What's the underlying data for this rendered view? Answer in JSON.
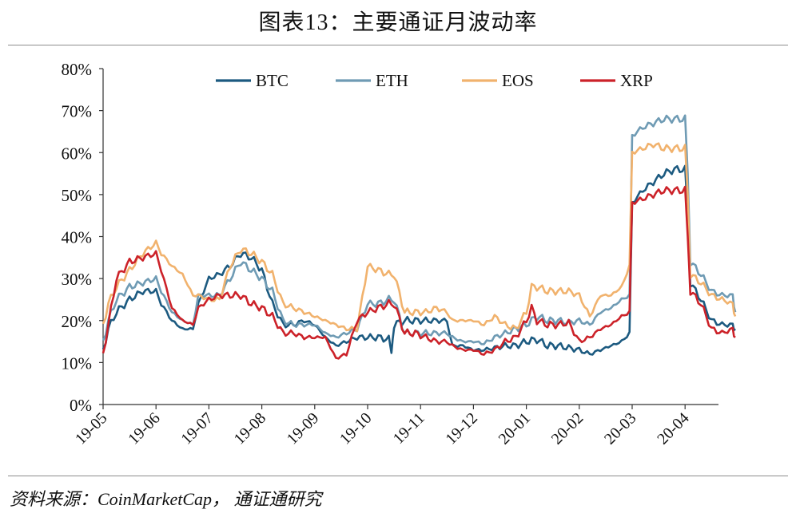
{
  "title": "图表13：主要通证月波动率",
  "source": "资料来源：CoinMarketCap， 通证通研究",
  "colors": {
    "BTC": "#1c5a80",
    "ETH": "#6f9bb4",
    "EOS": "#f1b26d",
    "XRP": "#cc2229",
    "axis": "#333333"
  },
  "chart_data": {
    "type": "line",
    "x_ticks": [
      "19-05",
      "19-06",
      "19-07",
      "19-08",
      "19-09",
      "19-10",
      "19-11",
      "19-12",
      "20-01",
      "20-02",
      "20-03",
      "20-04"
    ],
    "y_ticks": [
      "0%",
      "10%",
      "20%",
      "30%",
      "40%",
      "50%",
      "60%",
      "70%",
      "80%"
    ],
    "ylim": [
      0,
      80
    ],
    "xlim_months": [
      0,
      11.95
    ],
    "legend_position": "top",
    "series": [
      {
        "name": "BTC",
        "points": [
          [
            0,
            13
          ],
          [
            0.1,
            18
          ],
          [
            0.25,
            22
          ],
          [
            0.5,
            25
          ],
          [
            0.75,
            27
          ],
          [
            1.0,
            27
          ],
          [
            1.1,
            24
          ],
          [
            1.3,
            20
          ],
          [
            1.5,
            18
          ],
          [
            1.7,
            18
          ],
          [
            1.8,
            24
          ],
          [
            2.0,
            30
          ],
          [
            2.2,
            31
          ],
          [
            2.4,
            33
          ],
          [
            2.6,
            36
          ],
          [
            2.8,
            35
          ],
          [
            3.0,
            32
          ],
          [
            3.2,
            24
          ],
          [
            3.4,
            19
          ],
          [
            3.6,
            19
          ],
          [
            3.8,
            20
          ],
          [
            4.0,
            19
          ],
          [
            4.2,
            16
          ],
          [
            4.4,
            14
          ],
          [
            4.6,
            15
          ],
          [
            4.8,
            16
          ],
          [
            5.0,
            16
          ],
          [
            5.2,
            16
          ],
          [
            5.4,
            15.5
          ],
          [
            5.45,
            12.5
          ],
          [
            5.5,
            19
          ],
          [
            5.7,
            20
          ],
          [
            5.9,
            20
          ],
          [
            6.1,
            20
          ],
          [
            6.3,
            20
          ],
          [
            6.5,
            20
          ],
          [
            6.6,
            14
          ],
          [
            6.8,
            14
          ],
          [
            7.0,
            13
          ],
          [
            7.2,
            13
          ],
          [
            7.4,
            13.5
          ],
          [
            7.6,
            14
          ],
          [
            7.8,
            14
          ],
          [
            8.0,
            15
          ],
          [
            8.2,
            15.5
          ],
          [
            8.4,
            14
          ],
          [
            8.6,
            14
          ],
          [
            8.8,
            13.5
          ],
          [
            9.0,
            13
          ],
          [
            9.2,
            12
          ],
          [
            9.4,
            13
          ],
          [
            9.6,
            14
          ],
          [
            9.8,
            15
          ],
          [
            9.95,
            17
          ],
          [
            10.0,
            48
          ],
          [
            10.2,
            51
          ],
          [
            10.4,
            53
          ],
          [
            10.6,
            55
          ],
          [
            10.8,
            56
          ],
          [
            11.0,
            56
          ],
          [
            11.05,
            45
          ],
          [
            11.1,
            29
          ],
          [
            11.3,
            25
          ],
          [
            11.5,
            20
          ],
          [
            11.7,
            19
          ],
          [
            11.9,
            19
          ],
          [
            11.95,
            18
          ]
        ]
      },
      {
        "name": "ETH",
        "points": [
          [
            0,
            15
          ],
          [
            0.1,
            20
          ],
          [
            0.25,
            25
          ],
          [
            0.5,
            28
          ],
          [
            0.75,
            29
          ],
          [
            1.0,
            30
          ],
          [
            1.1,
            27
          ],
          [
            1.3,
            22
          ],
          [
            1.5,
            20
          ],
          [
            1.7,
            19
          ],
          [
            1.8,
            26
          ],
          [
            2.0,
            26
          ],
          [
            2.2,
            26
          ],
          [
            2.4,
            30
          ],
          [
            2.6,
            34
          ],
          [
            2.8,
            32
          ],
          [
            3.0,
            30
          ],
          [
            3.2,
            27
          ],
          [
            3.4,
            20
          ],
          [
            3.6,
            19
          ],
          [
            3.8,
            19
          ],
          [
            4.0,
            19
          ],
          [
            4.2,
            17
          ],
          [
            4.4,
            16
          ],
          [
            4.6,
            17
          ],
          [
            4.8,
            18
          ],
          [
            5.0,
            24
          ],
          [
            5.2,
            24
          ],
          [
            5.4,
            25
          ],
          [
            5.5,
            25
          ],
          [
            5.7,
            17
          ],
          [
            5.9,
            17
          ],
          [
            6.1,
            17
          ],
          [
            6.3,
            17
          ],
          [
            6.5,
            17
          ],
          [
            6.6,
            16
          ],
          [
            6.8,
            15
          ],
          [
            7.0,
            15
          ],
          [
            7.2,
            14.5
          ],
          [
            7.4,
            16
          ],
          [
            7.6,
            17
          ],
          [
            7.8,
            18
          ],
          [
            8.0,
            19
          ],
          [
            8.2,
            21
          ],
          [
            8.4,
            20
          ],
          [
            8.6,
            20
          ],
          [
            8.8,
            19.5
          ],
          [
            9.0,
            20
          ],
          [
            9.2,
            19
          ],
          [
            9.4,
            22
          ],
          [
            9.6,
            23
          ],
          [
            9.8,
            25
          ],
          [
            9.95,
            26
          ],
          [
            10.0,
            64
          ],
          [
            10.2,
            66
          ],
          [
            10.4,
            67
          ],
          [
            10.6,
            68
          ],
          [
            10.8,
            68
          ],
          [
            11.0,
            68
          ],
          [
            11.05,
            55
          ],
          [
            11.1,
            34
          ],
          [
            11.3,
            31
          ],
          [
            11.5,
            27
          ],
          [
            11.7,
            26
          ],
          [
            11.9,
            26
          ],
          [
            11.95,
            22
          ]
        ]
      },
      {
        "name": "EOS",
        "points": [
          [
            0,
            19
          ],
          [
            0.1,
            24
          ],
          [
            0.25,
            28
          ],
          [
            0.5,
            32
          ],
          [
            0.75,
            36
          ],
          [
            1.0,
            38.5
          ],
          [
            1.1,
            36
          ],
          [
            1.3,
            33
          ],
          [
            1.5,
            31
          ],
          [
            1.7,
            26
          ],
          [
            1.8,
            26
          ],
          [
            2.0,
            25
          ],
          [
            2.2,
            25
          ],
          [
            2.4,
            33
          ],
          [
            2.6,
            37
          ],
          [
            2.8,
            36
          ],
          [
            3.0,
            34
          ],
          [
            3.2,
            31
          ],
          [
            3.4,
            24
          ],
          [
            3.6,
            23
          ],
          [
            3.8,
            22
          ],
          [
            4.0,
            21
          ],
          [
            4.2,
            20
          ],
          [
            4.4,
            19
          ],
          [
            4.6,
            18
          ],
          [
            4.8,
            18
          ],
          [
            5.0,
            33
          ],
          [
            5.2,
            32
          ],
          [
            5.4,
            31
          ],
          [
            5.5,
            31
          ],
          [
            5.7,
            22
          ],
          [
            5.9,
            22
          ],
          [
            6.1,
            22
          ],
          [
            6.3,
            23
          ],
          [
            6.5,
            22
          ],
          [
            6.6,
            20
          ],
          [
            6.8,
            20
          ],
          [
            7.0,
            20
          ],
          [
            7.2,
            19
          ],
          [
            7.4,
            21
          ],
          [
            7.6,
            19
          ],
          [
            7.8,
            18
          ],
          [
            8.0,
            22
          ],
          [
            8.1,
            28
          ],
          [
            8.2,
            28
          ],
          [
            8.4,
            27
          ],
          [
            8.6,
            27
          ],
          [
            8.8,
            27
          ],
          [
            9.0,
            26
          ],
          [
            9.2,
            21
          ],
          [
            9.4,
            26
          ],
          [
            9.6,
            26
          ],
          [
            9.8,
            28
          ],
          [
            9.95,
            33
          ],
          [
            10.0,
            60
          ],
          [
            10.2,
            61
          ],
          [
            10.4,
            62
          ],
          [
            10.6,
            61
          ],
          [
            10.8,
            61
          ],
          [
            11.0,
            61
          ],
          [
            11.05,
            50
          ],
          [
            11.1,
            31
          ],
          [
            11.3,
            29
          ],
          [
            11.5,
            26
          ],
          [
            11.7,
            25
          ],
          [
            11.9,
            24
          ],
          [
            11.95,
            21
          ]
        ]
      },
      {
        "name": "XRP",
        "points": [
          [
            0,
            12
          ],
          [
            0.1,
            19
          ],
          [
            0.25,
            30
          ],
          [
            0.5,
            34
          ],
          [
            0.75,
            35
          ],
          [
            1.0,
            36
          ],
          [
            1.1,
            32
          ],
          [
            1.3,
            23
          ],
          [
            1.5,
            20
          ],
          [
            1.7,
            19
          ],
          [
            1.8,
            23
          ],
          [
            2.0,
            25
          ],
          [
            2.2,
            26
          ],
          [
            2.4,
            26
          ],
          [
            2.6,
            26
          ],
          [
            2.8,
            24
          ],
          [
            3.0,
            23
          ],
          [
            3.2,
            21
          ],
          [
            3.4,
            17
          ],
          [
            3.6,
            17
          ],
          [
            3.8,
            16
          ],
          [
            4.0,
            16
          ],
          [
            4.2,
            16
          ],
          [
            4.4,
            11
          ],
          [
            4.6,
            12
          ],
          [
            4.8,
            20
          ],
          [
            5.0,
            22
          ],
          [
            5.2,
            23
          ],
          [
            5.4,
            24
          ],
          [
            5.5,
            24
          ],
          [
            5.7,
            17
          ],
          [
            5.9,
            17
          ],
          [
            6.1,
            16
          ],
          [
            6.3,
            15
          ],
          [
            6.5,
            15
          ],
          [
            6.6,
            14
          ],
          [
            6.8,
            13
          ],
          [
            7.0,
            13
          ],
          [
            7.2,
            12
          ],
          [
            7.4,
            13
          ],
          [
            7.6,
            15
          ],
          [
            7.8,
            16
          ],
          [
            8.0,
            20
          ],
          [
            8.1,
            23
          ],
          [
            8.2,
            20
          ],
          [
            8.4,
            19
          ],
          [
            8.6,
            19
          ],
          [
            8.8,
            19.5
          ],
          [
            9.0,
            15
          ],
          [
            9.2,
            16
          ],
          [
            9.4,
            18
          ],
          [
            9.6,
            19
          ],
          [
            9.8,
            21
          ],
          [
            9.95,
            22
          ],
          [
            10.0,
            48
          ],
          [
            10.2,
            49
          ],
          [
            10.4,
            50
          ],
          [
            10.6,
            51
          ],
          [
            10.8,
            51
          ],
          [
            11.0,
            51
          ],
          [
            11.05,
            40
          ],
          [
            11.1,
            27
          ],
          [
            11.3,
            24
          ],
          [
            11.5,
            18
          ],
          [
            11.7,
            17
          ],
          [
            11.9,
            18
          ],
          [
            11.95,
            16
          ]
        ]
      }
    ]
  }
}
